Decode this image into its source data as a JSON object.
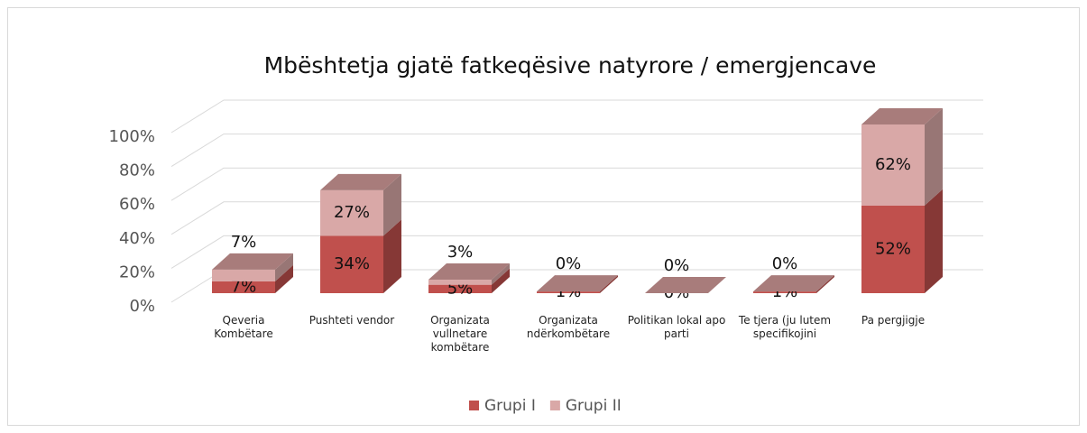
{
  "chart_data": {
    "type": "bar3d_stacked",
    "title": "Mbështetja gjatë fatkeqësive natyrore / emergjencave",
    "categories": [
      "Qeveria Kombëtare",
      "Pushteti vendor",
      "Organizata vullnetare kombëtare",
      "Organizata ndërkombëtare",
      "Politikan lokal apo parti",
      "Te tjera (ju lutem specifikojini",
      "Pa pergjigje"
    ],
    "series": [
      {
        "name": "Grupi I",
        "color": "#c0504d",
        "values": [
          7,
          34,
          5,
          1,
          0,
          1,
          52
        ],
        "value_labels": [
          "7%",
          "34%",
          "5%",
          "1%",
          "0%",
          "1%",
          "52%"
        ]
      },
      {
        "name": "Grupi II",
        "color": "#d9a8a7",
        "values": [
          7,
          27,
          3,
          0,
          0,
          0,
          62
        ],
        "value_labels": [
          "7%",
          "27%",
          "3%",
          "0%",
          "0%",
          "0%",
          "62%"
        ]
      }
    ],
    "ylim": [
      0,
      100
    ],
    "yticks": [
      {
        "value": 0,
        "label": "0%"
      },
      {
        "value": 20,
        "label": "20%"
      },
      {
        "value": 40,
        "label": "40%"
      },
      {
        "value": 60,
        "label": "60%"
      },
      {
        "value": 80,
        "label": "80%"
      },
      {
        "value": 100,
        "label": "100%"
      }
    ],
    "grid": true,
    "legend": "bottom"
  }
}
